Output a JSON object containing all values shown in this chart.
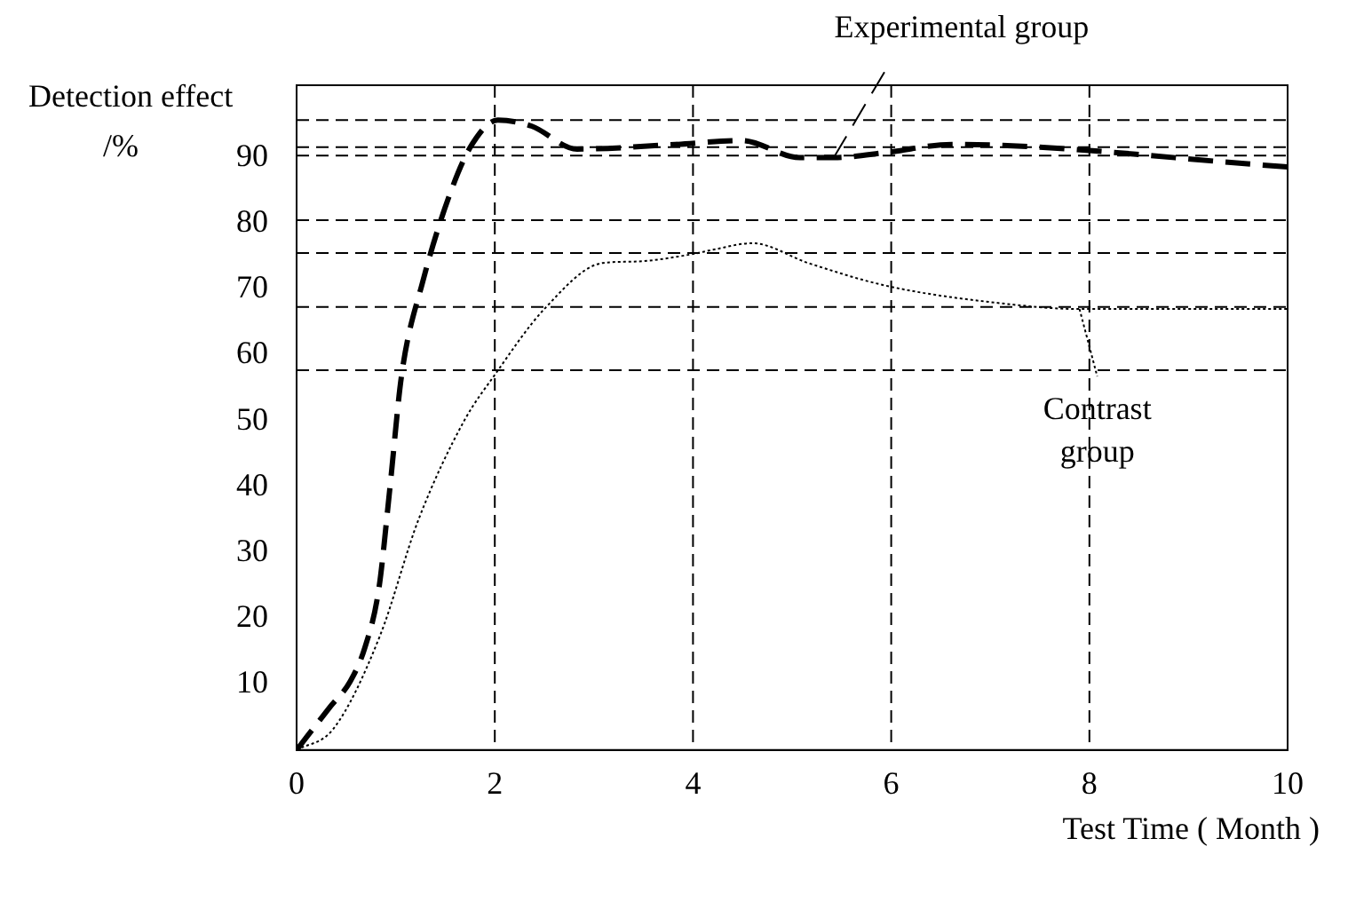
{
  "chart_data": {
    "type": "line",
    "xlabel": "Test Time ( Month )",
    "ylabel": "Detection effect /%",
    "xlim": [
      0,
      10
    ],
    "xticks": [
      0,
      2,
      4,
      6,
      8,
      10
    ],
    "ylim": [
      0,
      101
    ],
    "yticks": [
      10,
      20,
      30,
      40,
      50,
      60,
      70,
      80,
      90
    ],
    "grid": false,
    "legend": "right",
    "marker": "none",
    "series": [
      {
        "name": "Experimental group",
        "color": "#000000",
        "line_style": "dashed",
        "x": [
          0,
          0.33,
          0.54,
          0.69,
          0.83,
          0.94,
          1.06,
          1.27,
          1.56,
          1.77,
          2.03,
          2.37,
          2.83,
          3.82,
          4.49,
          5.08,
          5.42,
          5.96,
          6.61,
          10
        ],
        "values": [
          0,
          6.4,
          10.4,
          15.6,
          24.5,
          39.6,
          57,
          71,
          85,
          92,
          95.7,
          94.8,
          91.3,
          92,
          92.6,
          90,
          90,
          90.8,
          92,
          88.6
        ]
      },
      {
        "name": "Contrast group",
        "color": "#000000",
        "line_style": "dotted",
        "x": [
          0,
          0.37,
          0.84,
          1.23,
          1.69,
          2,
          2.5,
          3.09,
          3.4,
          3.98,
          4.2,
          4.6,
          5.16,
          5.96,
          7.15,
          7.9,
          10
        ],
        "values": [
          0,
          3.2,
          17.3,
          35,
          50,
          57,
          67,
          74,
          74.2,
          75.3,
          76,
          77,
          74,
          70.5,
          67.8,
          67,
          67
        ]
      }
    ],
    "ref_lines": [
      {
        "axis": "y",
        "value": 95.7,
        "line_style": "dashed",
        "color": "#000000"
      },
      {
        "axis": "y",
        "value": 91.6,
        "line_style": "dashed",
        "color": "#000000"
      },
      {
        "axis": "y",
        "value": 90.3,
        "line_style": "dashed",
        "color": "#000000"
      },
      {
        "axis": "y",
        "value": 80.5,
        "line_style": "dashed",
        "color": "#000000"
      },
      {
        "axis": "y",
        "value": 75.5,
        "line_style": "dashed",
        "color": "#000000"
      },
      {
        "axis": "y",
        "value": 67.3,
        "line_style": "dashed",
        "color": "#000000"
      },
      {
        "axis": "y",
        "value": 57.7,
        "line_style": "dashed",
        "color": "#000000"
      },
      {
        "axis": "x",
        "value": 2,
        "line_style": "dashed",
        "color": "#000000"
      },
      {
        "axis": "x",
        "value": 4,
        "line_style": "dashed",
        "color": "#000000"
      },
      {
        "axis": "x",
        "value": 6,
        "line_style": "dashed",
        "color": "#000000"
      },
      {
        "axis": "x",
        "value": 8,
        "line_style": "dashed",
        "color": "#000000"
      }
    ]
  }
}
